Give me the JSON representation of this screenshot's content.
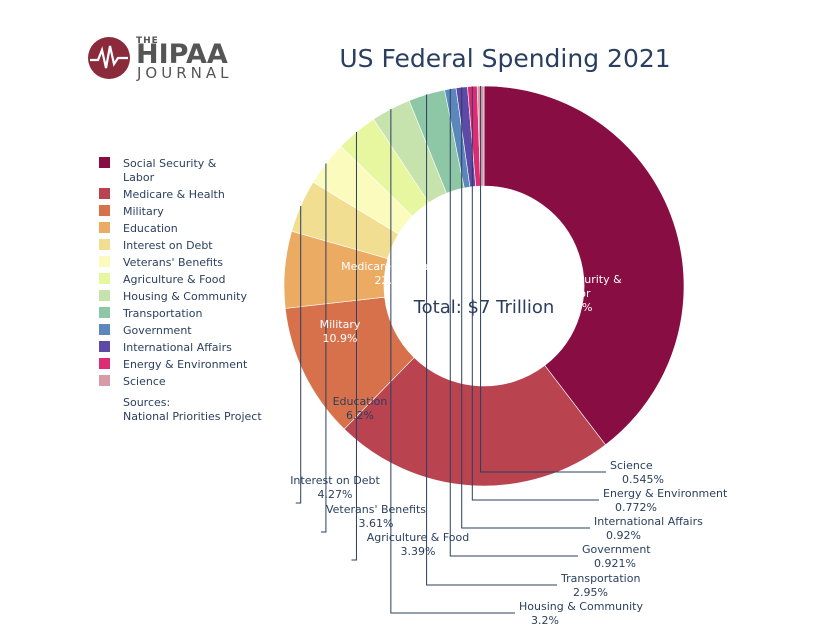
{
  "logo": {
    "the": "THE",
    "hipaa": "HIPAA",
    "journal": "JOURNAL"
  },
  "chart_data": {
    "type": "pie",
    "title": "US Federal Spending 2021",
    "center_label": "Total: $7 Trillion",
    "hole": 0.5,
    "legend_position": "left",
    "sources_lines": [
      "Sources:",
      "National Priorities Project"
    ],
    "slices": [
      {
        "label": "Social Security & Labor",
        "legend_lines": [
          "Social Security &",
          "Labor"
        ],
        "value": 39.6,
        "text": "39.6%",
        "color": "#880d42"
      },
      {
        "label": "Medicare & Health",
        "legend_lines": [
          "Medicare & Health"
        ],
        "value": 22.7,
        "text": "22.7%",
        "color": "#b9434f"
      },
      {
        "label": "Military",
        "legend_lines": [
          "Military"
        ],
        "value": 10.9,
        "text": "10.9%",
        "color": "#d7714c"
      },
      {
        "label": "Education",
        "legend_lines": [
          "Education"
        ],
        "value": 6.2,
        "text": "6.2%",
        "color": "#ebab63"
      },
      {
        "label": "Interest on Debt",
        "legend_lines": [
          "Interest on Debt"
        ],
        "value": 4.27,
        "text": "4.27%",
        "color": "#f2de90"
      },
      {
        "label": "Veterans' Benefits",
        "legend_lines": [
          "Veterans' Benefits"
        ],
        "value": 3.61,
        "text": "3.61%",
        "color": "#fbfbbd"
      },
      {
        "label": "Agriculture & Food",
        "legend_lines": [
          "Agriculture & Food"
        ],
        "value": 3.39,
        "text": "3.39%",
        "color": "#e6f7a0"
      },
      {
        "label": "Housing & Community",
        "legend_lines": [
          "Housing & Community"
        ],
        "value": 3.2,
        "text": "3.2%",
        "color": "#c6e2ad"
      },
      {
        "label": "Transportation",
        "legend_lines": [
          "Transportation"
        ],
        "value": 2.95,
        "text": "2.95%",
        "color": "#8dc7a6"
      },
      {
        "label": "Government",
        "legend_lines": [
          "Government"
        ],
        "value": 0.921,
        "text": "0.921%",
        "color": "#5b87bc"
      },
      {
        "label": "International Affairs",
        "legend_lines": [
          "International Affairs"
        ],
        "value": 0.92,
        "text": "0.92%",
        "color": "#5c4aa6"
      },
      {
        "label": "Energy & Environment",
        "legend_lines": [
          "Energy & Environment"
        ],
        "value": 0.772,
        "text": "0.772%",
        "color": "#dd2c74"
      },
      {
        "label": "Science",
        "legend_lines": [
          "Science"
        ],
        "value": 0.545,
        "text": "0.545%",
        "color": "#d89aa6"
      }
    ]
  }
}
